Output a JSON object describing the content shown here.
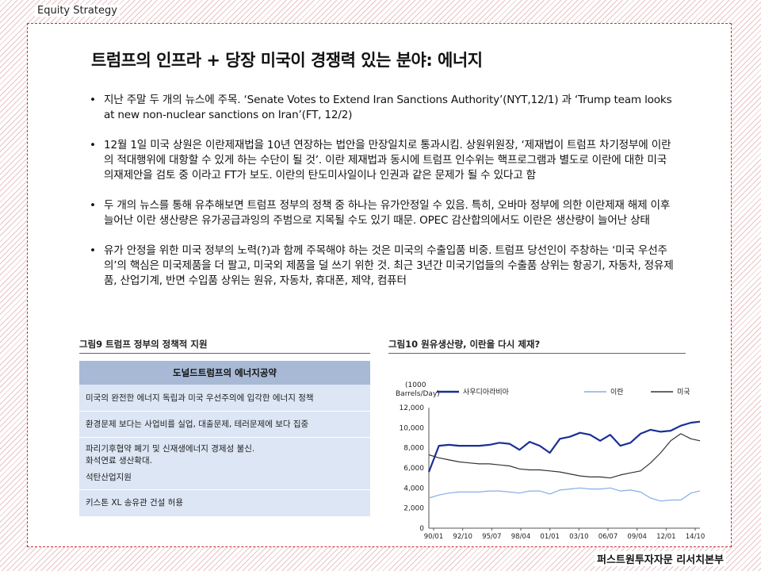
{
  "header": {
    "label": "Equity Strategy"
  },
  "footer": {
    "label": "퍼스트원투자자문 리서치본부"
  },
  "title": "트럼프의 인프라 + 당장 미국이 경쟁력 있는 분야: 에너지",
  "bullets": [
    "지난 주말 두 개의 뉴스에 주목. ‘Senate Votes to Extend Iran Sanctions Authority’(NYT,12/1) 과 ‘Trump team looks at new non-nuclear sanctions on Iran’(FT, 12/2)",
    "12월 1일 미국 상원은 이란제재법을 10년 연장하는 법안을 만장일치로 통과시킴. 상원위원장, ‘제재법이 트럼프 차기정부에 이란의 적대행위에 대항할 수 있게 하는 수단이 될 것’. 이란 제재법과 동시에 트럼프 인수위는 핵프로그램과 별도로 이란에 대한 미국의재제안을 검토 중 이라고 FT가 보도. 이란의 탄도미사일이나 인권과 같은 문제가 될 수 있다고 함",
    "두 개의 뉴스를 통해 유추해보면 트럼프 정부의 정책 중 하나는 유가안정일 수 있음. 특히, 오바마 정부에 의한 이란제재 해제 이후 늘어난 이란 생산량은 유가공급과잉의 주범으로 지목될 수도 있기 때문. OPEC 감산합의에서도 이란은 생산량이 늘어난 상태",
    "유가 안정을 위한 미국 정부의 노력(?)과 함께 주목해야 하는 것은 미국의 수출입품 비중. 트럼프 당선인이 주창하는 ‘미국 우선주의’의 핵심은 미국제품을 더 팔고, 미국외 제품을 덜 쓰기 위한 것. 최근 3년간 미국기업들의 수출품 상위는 항공기, 자동차, 정유제품, 산업기계, 반면 수입품 상위는 원유, 자동차, 휴대폰, 제약, 컴퓨터"
  ],
  "figure9": {
    "title": "그림9 트럼프 정부의 정책적 지원",
    "table_header": "도널드트럼프의 에너지공약",
    "rows": [
      "미국의 완전한 에너지 독립과 미국 우선주의에 입각한 에너지 정책",
      "환경문제 보다는 사업비를 실업, 대출문제, 테러문제에 보다 집중",
      "파리기후협약 폐기 및 신재생에너지 경제성 불신.",
      "화석연료 생산확대.",
      "석탄산업지원",
      "키스톤 XL 송유관 건설 허용"
    ]
  },
  "figure10": {
    "title": "그림10 원유생산량, 이란을 다시 제재?",
    "unit_line1": "(1000",
    "unit_line2": "Barrels/Day)"
  },
  "chart_data": {
    "type": "line",
    "title": "",
    "ylim": [
      0,
      12000
    ],
    "yticks": [
      "12,000",
      "10,000",
      "8,000",
      "6,000",
      "4,000",
      "2,000",
      "0"
    ],
    "xticks": [
      "90/01",
      "92/10",
      "95/07",
      "98/04",
      "01/01",
      "03/10",
      "06/07",
      "09/04",
      "12/01",
      "14/10"
    ],
    "x": [
      1990.0,
      1991.0,
      1992.0,
      1993.0,
      1994.0,
      1995.0,
      1996.0,
      1997.0,
      1998.0,
      1999.0,
      2000.0,
      2001.0,
      2002.0,
      2003.0,
      2004.0,
      2005.0,
      2006.0,
      2007.0,
      2008.0,
      2009.0,
      2010.0,
      2011.0,
      2012.0,
      2013.0,
      2014.0,
      2015.0,
      2016.0,
      2016.9
    ],
    "series": [
      {
        "name": "사우디아라비아",
        "color": "#1a2f95",
        "values": [
          5600,
          8200,
          8300,
          8200,
          8200,
          8200,
          8300,
          8500,
          8400,
          7800,
          8600,
          8200,
          7500,
          8900,
          9100,
          9500,
          9300,
          8700,
          9300,
          8200,
          8500,
          9400,
          9800,
          9600,
          9700,
          10200,
          10500,
          10600
        ]
      },
      {
        "name": "이란",
        "color": "#86aee6",
        "values": [
          3000,
          3300,
          3500,
          3600,
          3600,
          3600,
          3700,
          3700,
          3600,
          3500,
          3700,
          3700,
          3400,
          3800,
          3900,
          4000,
          3900,
          3900,
          4000,
          3700,
          3800,
          3600,
          3000,
          2700,
          2800,
          2800,
          3500,
          3700
        ]
      },
      {
        "name": "미국",
        "color": "#333333",
        "values": [
          7300,
          7000,
          6800,
          6600,
          6500,
          6400,
          6400,
          6300,
          6200,
          5900,
          5800,
          5800,
          5700,
          5600,
          5400,
          5200,
          5100,
          5100,
          5000,
          5300,
          5500,
          5700,
          6500,
          7500,
          8700,
          9400,
          8900,
          8700
        ]
      }
    ]
  }
}
